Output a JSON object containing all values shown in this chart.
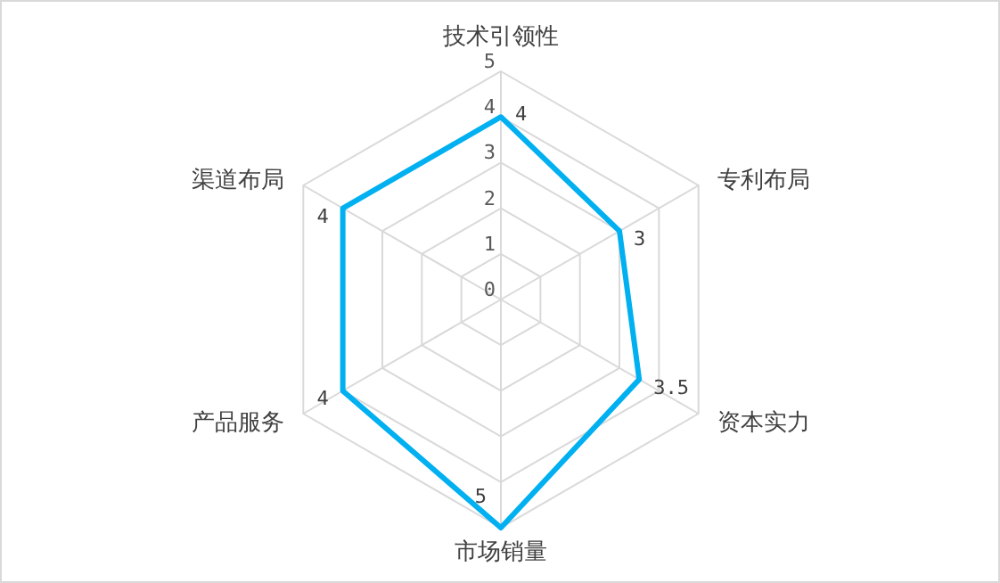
{
  "chart_data": {
    "type": "radar",
    "categories": [
      "技术引领性",
      "专利布局",
      "资本实力",
      "市场销量",
      "产品服务",
      "渠道布局"
    ],
    "series": [
      {
        "color": "#00b0f0",
        "values": [
          4,
          3,
          3.5,
          5,
          4,
          4
        ]
      }
    ],
    "ylim": [
      0,
      5
    ],
    "yticks": [
      0,
      1,
      2,
      3,
      4,
      5
    ],
    "grid": true,
    "data_labels": true
  }
}
